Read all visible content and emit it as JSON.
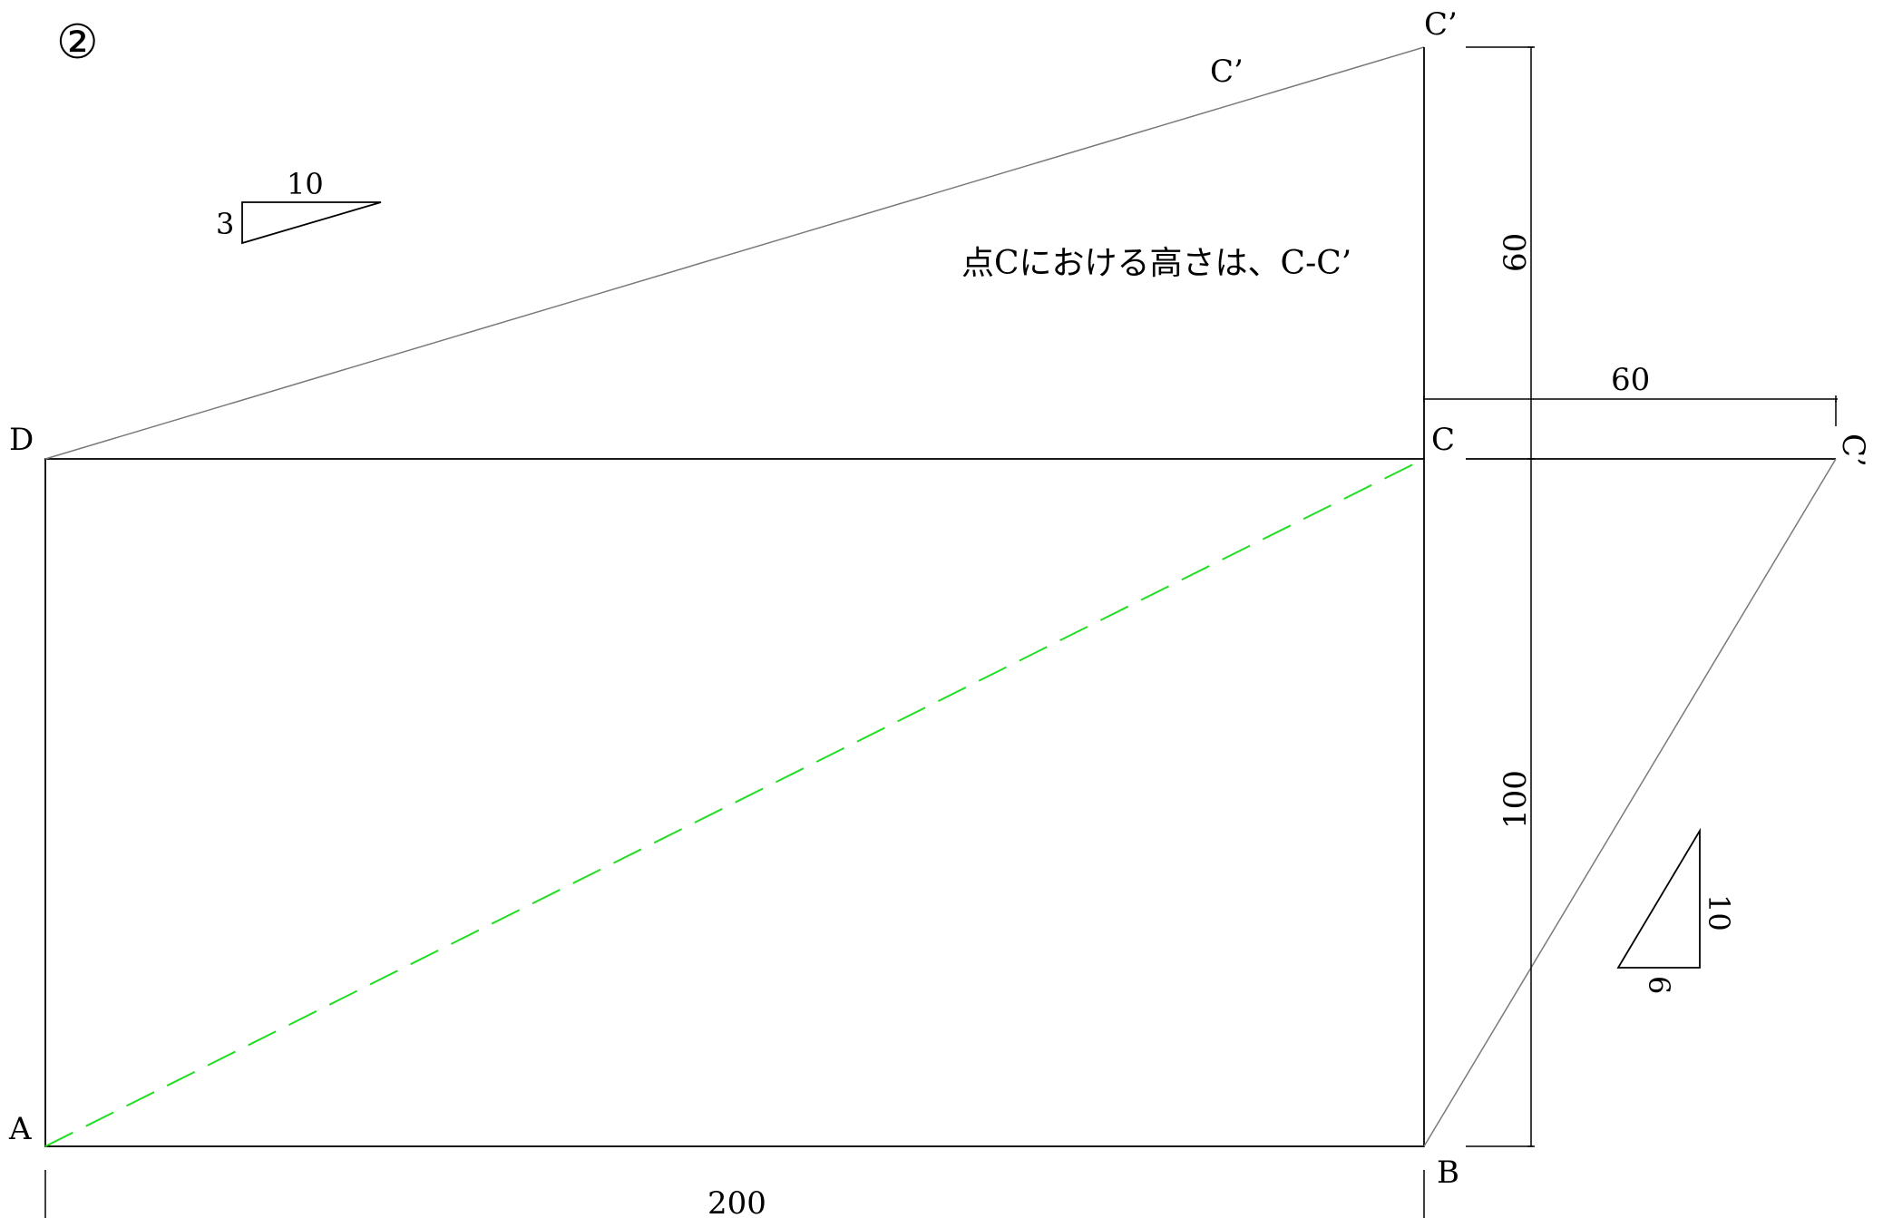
{
  "figure_number": "②",
  "points": {
    "A": "A",
    "B": "B",
    "C": "C",
    "D": "D",
    "C_prime_top": "C’",
    "C_prime_mid": "C’",
    "C_prime_right": "C’"
  },
  "dimensions": {
    "bottom_width": "200",
    "right_height_lower": "100",
    "right_height_upper": "60",
    "right_offset": "60"
  },
  "slope_small_top": {
    "run": "10",
    "rise": "3"
  },
  "slope_small_right": {
    "rise": "10",
    "run": "6"
  },
  "note": "点Cにおける高さは、C-C’",
  "colors": {
    "lines": "#000000",
    "sloped_lines": "#7a7a7a",
    "diagonal": "#22dd22"
  }
}
